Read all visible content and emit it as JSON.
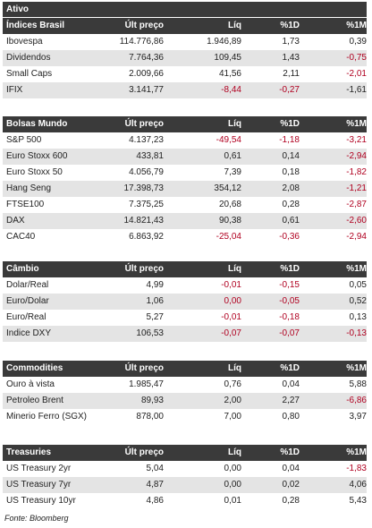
{
  "header": {
    "title": "Ativo"
  },
  "sections": [
    {
      "columns": [
        "Índices Brasil",
        "Últ preço",
        "Líq",
        "%1D",
        "%1M"
      ],
      "rows": [
        {
          "cells": [
            "Ibovespa",
            "114.776,86",
            "1.946,89",
            "1,73",
            "0,39"
          ]
        },
        {
          "cells": [
            "Dividendos",
            "7.764,36",
            "109,45",
            "1,43",
            "-0,75"
          ],
          "red": [
            4
          ]
        },
        {
          "cells": [
            "Small Caps",
            "2.009,66",
            "41,56",
            "2,11",
            "-2,01"
          ],
          "red": [
            4
          ]
        },
        {
          "cells": [
            "IFIX",
            "3.141,77",
            "-8,44",
            "-0,27",
            "-1,61"
          ],
          "red": [
            2,
            3
          ]
        }
      ]
    },
    {
      "columns": [
        "Bolsas Mundo",
        "Últ preço",
        "Líq",
        "%1D",
        "%1M"
      ],
      "rows": [
        {
          "cells": [
            "S&P 500",
            "4.137,23",
            "-49,54",
            "-1,18",
            "-3,21"
          ],
          "red": [
            2,
            3,
            4
          ]
        },
        {
          "cells": [
            "Euro Stoxx 600",
            "433,81",
            "0,61",
            "0,14",
            "-2,94"
          ],
          "red": [
            4
          ]
        },
        {
          "cells": [
            "Euro Stoxx 50",
            "4.056,79",
            "7,39",
            "0,18",
            "-1,82"
          ],
          "red": [
            4
          ]
        },
        {
          "cells": [
            "Hang Seng",
            "17.398,73",
            "354,12",
            "2,08",
            "-1,21"
          ],
          "red": [
            4
          ]
        },
        {
          "cells": [
            "FTSE100",
            "7.375,25",
            "20,68",
            "0,28",
            "-2,87"
          ],
          "red": [
            4
          ]
        },
        {
          "cells": [
            "DAX",
            "14.821,43",
            "90,38",
            "0,61",
            "-2,60"
          ],
          "red": [
            4
          ]
        },
        {
          "cells": [
            "CAC40",
            "6.863,92",
            "-25,04",
            "-0,36",
            "-2,94"
          ],
          "red": [
            2,
            3,
            4
          ]
        }
      ]
    },
    {
      "columns": [
        "Câmbio",
        "Últ preço",
        "Líq",
        "%1D",
        "%1M"
      ],
      "rows": [
        {
          "cells": [
            "Dolar/Real",
            "4,99",
            "-0,01",
            "-0,15",
            "0,05"
          ],
          "red": [
            2,
            3
          ]
        },
        {
          "cells": [
            "Euro/Dolar",
            "1,06",
            "0,00",
            "-0,05",
            "0,52"
          ],
          "red": [
            2,
            3
          ]
        },
        {
          "cells": [
            "Euro/Real",
            "5,27",
            "-0,01",
            "-0,18",
            "0,13"
          ],
          "red": [
            2,
            3
          ]
        },
        {
          "cells": [
            "Indice DXY",
            "106,53",
            "-0,07",
            "-0,07",
            "-0,13"
          ],
          "red": [
            2,
            3,
            4
          ]
        }
      ]
    },
    {
      "columns": [
        "Commodities",
        "Últ preço",
        "Líq",
        "%1D",
        "%1M"
      ],
      "rows": [
        {
          "cells": [
            "Ouro à vista",
            "1.985,47",
            "0,76",
            "0,04",
            "5,88"
          ]
        },
        {
          "cells": [
            "Petroleo Brent",
            "89,93",
            "2,00",
            "2,27",
            "-6,86"
          ],
          "red": [
            4
          ]
        },
        {
          "cells": [
            "Minerio Ferro (SGX)",
            "878,00",
            "7,00",
            "0,80",
            "3,97"
          ]
        }
      ]
    },
    {
      "columns": [
        "Treasuries",
        "Últ preço",
        "Líq",
        "%1D",
        "%1M"
      ],
      "rows": [
        {
          "cells": [
            "US Treasury 2yr",
            "5,04",
            "0,00",
            "0,04",
            "-1,83"
          ],
          "red": [
            4
          ]
        },
        {
          "cells": [
            "US Treasury 7yr",
            "4,87",
            "0,00",
            "0,02",
            "4,06"
          ]
        },
        {
          "cells": [
            "US Treasury 10yr",
            "4,86",
            "0,01",
            "0,28",
            "5,43"
          ]
        }
      ]
    }
  ],
  "footer": "Fonte: Bloomberg"
}
